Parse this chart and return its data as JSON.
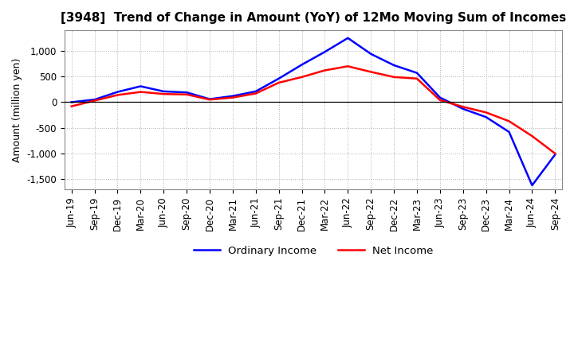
{
  "title": "[3948]  Trend of Change in Amount (YoY) of 12Mo Moving Sum of Incomes",
  "ylabel": "Amount (million yen)",
  "x_labels": [
    "Jun-19",
    "Sep-19",
    "Dec-19",
    "Mar-20",
    "Jun-20",
    "Sep-20",
    "Dec-20",
    "Mar-21",
    "Jun-21",
    "Sep-21",
    "Dec-21",
    "Mar-22",
    "Jun-22",
    "Sep-22",
    "Dec-22",
    "Mar-23",
    "Jun-23",
    "Sep-23",
    "Dec-23",
    "Mar-24",
    "Jun-24",
    "Sep-24"
  ],
  "ordinary_income": [
    0,
    50,
    200,
    310,
    210,
    190,
    60,
    120,
    210,
    460,
    730,
    980,
    1250,
    940,
    720,
    570,
    90,
    -130,
    -290,
    -580,
    -1620,
    -1020
  ],
  "net_income": [
    -80,
    30,
    140,
    200,
    160,
    150,
    50,
    90,
    170,
    380,
    490,
    620,
    700,
    590,
    490,
    460,
    40,
    -90,
    -200,
    -370,
    -660,
    -1000
  ],
  "ordinary_income_color": "#0000ff",
  "net_income_color": "#ff0000",
  "ylim_min": -1700,
  "ylim_max": 1400,
  "yticks": [
    -1500,
    -1000,
    -500,
    0,
    500,
    1000
  ],
  "background_color": "#ffffff",
  "grid_color": "#b0b0b0",
  "title_fontsize": 11,
  "axis_fontsize": 9,
  "tick_fontsize": 8.5
}
